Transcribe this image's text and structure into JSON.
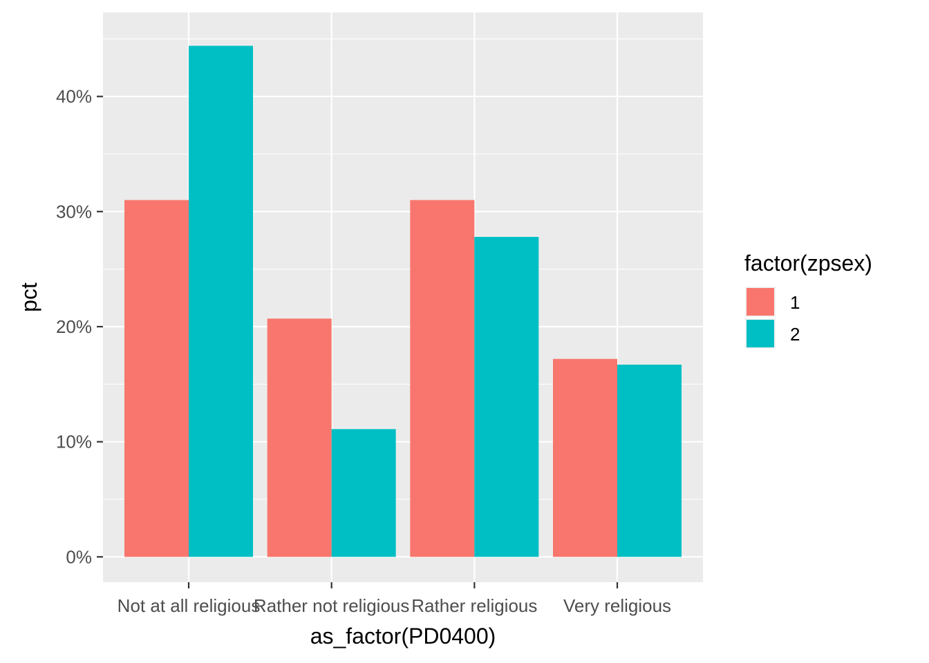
{
  "chart_data": {
    "type": "bar",
    "xlabel": "as_factor(PD0400)",
    "ylabel": "pct",
    "categories": [
      "Not at all religious",
      "Rather not religious",
      "Rather religious",
      "Very religious"
    ],
    "series": [
      {
        "name": "1",
        "values": [
          31.0,
          20.7,
          31.0,
          17.2
        ]
      },
      {
        "name": "2",
        "values": [
          44.4,
          11.1,
          27.8,
          16.7
        ]
      }
    ],
    "ylim": [
      -2.2,
      47.3
    ],
    "y_ticks": [
      0,
      10,
      20,
      30,
      40
    ],
    "y_tick_labels": [
      "0%",
      "10%",
      "20%",
      "30%",
      "40%"
    ],
    "legend": {
      "title": "factor(zpsex)",
      "position": "right"
    },
    "grid": true
  },
  "colors": {
    "series_1": "#F8766D",
    "series_2": "#00BFC4",
    "panel_bg": "#EBEBEB",
    "grid": "#FFFFFF",
    "tick_text": "#4D4D4D",
    "tick_mark": "#333333"
  }
}
